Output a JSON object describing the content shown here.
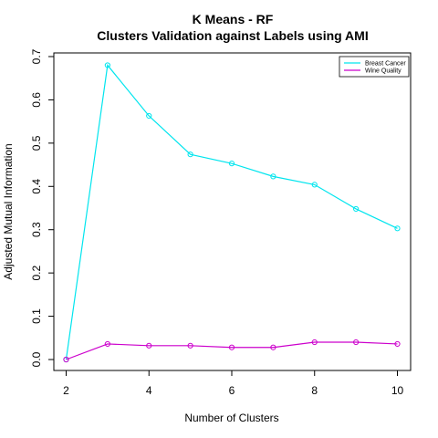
{
  "chart_data": {
    "type": "line",
    "title": "K Means - RF",
    "subtitle": "Clusters Validation against Labels using AMI",
    "xlabel": "Number of Clusters",
    "ylabel": "Adjusted Mutual Information",
    "x": [
      2,
      3,
      4,
      5,
      6,
      7,
      8,
      9,
      10
    ],
    "xlim": [
      2,
      10
    ],
    "ylim": [
      0,
      0.7
    ],
    "xticks": [
      "2",
      "4",
      "6",
      "8",
      "10"
    ],
    "yticks": [
      "0.0",
      "0.1",
      "0.2",
      "0.3",
      "0.4",
      "0.5",
      "0.6",
      "0.7"
    ],
    "grid": false,
    "legend_position": "top-right",
    "series": [
      {
        "name": "Breast Cancer",
        "color": "#00e5ee",
        "values": [
          0.0,
          0.68,
          0.563,
          0.474,
          0.453,
          0.423,
          0.404,
          0.348,
          0.303
        ]
      },
      {
        "name": "Wine Quality",
        "color": "#cc00cc",
        "values": [
          0.0,
          0.036,
          0.032,
          0.032,
          0.028,
          0.028,
          0.04,
          0.04,
          0.036
        ]
      }
    ]
  }
}
